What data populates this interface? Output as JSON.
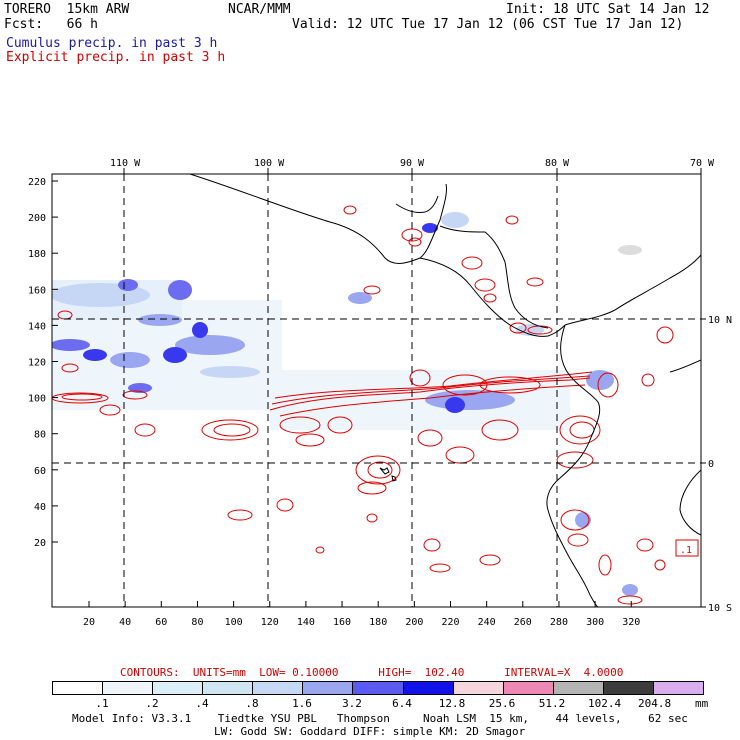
{
  "header": {
    "model": "TORERO  15km ARW",
    "org": "NCAR/MMM",
    "init": "Init: 18 UTC Sat 14 Jan 12",
    "fcst": "Fcst:   66 h",
    "valid": "Valid: 12 UTC Tue 17 Jan 12 (06 CST Tue 17 Jan 12)",
    "legend_cumulus": "Cumulus precip. in past 3 h",
    "legend_explicit": "Explicit precip. in past 3 h"
  },
  "map": {
    "top_lon_labels": [
      "110 W",
      "100 W",
      "90 W",
      "80 W",
      "70 W"
    ],
    "right_lat_labels": [
      "10 N",
      "0",
      "10 S"
    ],
    "x_ticks": [
      "20",
      "40",
      "60",
      "80",
      "100",
      "120",
      "140",
      "160",
      "180",
      "200",
      "220",
      "240",
      "260",
      "280",
      "300",
      "320"
    ],
    "y_ticks": [
      "220",
      "200",
      "180",
      "160",
      "140",
      "120",
      "100",
      "80",
      "60",
      "40",
      "20"
    ],
    "box_label": ".1",
    "colors": {
      "cumulus": "#3a3af0",
      "explicit": "#e00000",
      "coast": "#000000",
      "grid": "#000000"
    }
  },
  "contours": {
    "text": "CONTOURS:  UNITS=mm  LOW= 0.10000      HIGH=  102.40      INTERVAL=X  4.0000"
  },
  "colorbar": {
    "labels": [
      ".1",
      ".2",
      ".4",
      ".8",
      "1.6",
      "3.2",
      "6.4",
      "12.8",
      "25.6",
      "51.2",
      "102.4",
      "204.8"
    ],
    "unit": "mm",
    "colors": [
      "#ffffff",
      "#eef6fb",
      "#dceef7",
      "#cfe6f2",
      "#c5d8f4",
      "#9aa6f0",
      "#5b5cef",
      "#1212e8",
      "#f4d6dc",
      "#ee88b4",
      "#b4b4b4",
      "#3c3c3c",
      "#d8aef0"
    ]
  },
  "footer": {
    "line1": "Model Info: V3.3.1    Tiedtke YSU PBL   Thompson     Noah LSM  15 km,    44 levels,    62 sec",
    "line2": "LW: Godd SW: Goddard DIFF: simple KM: 2D Smagor"
  }
}
